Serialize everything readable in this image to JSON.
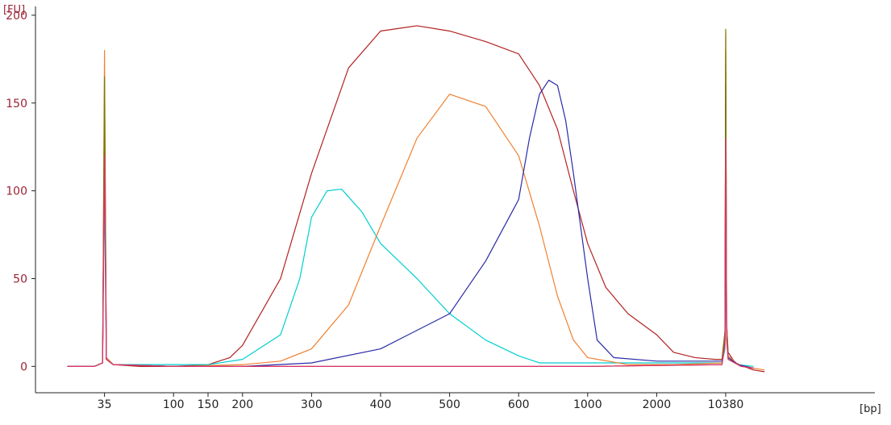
{
  "chart_data": {
    "type": "line",
    "title": "",
    "xlabel": "",
    "ylabel": "",
    "y_unit": "[FU]",
    "x_unit": "[bp]",
    "x_scale": "nonlinear",
    "ylim": [
      -15,
      205
    ],
    "y_ticks": [
      0,
      50,
      100,
      150,
      200
    ],
    "y_tick_labels": [
      "0",
      "50",
      "100",
      "150",
      "200"
    ],
    "x_ticks": [
      35,
      100,
      150,
      200,
      300,
      400,
      500,
      600,
      1000,
      2000,
      10380
    ],
    "x_tick_labels": [
      "35",
      "100",
      "150",
      "200",
      "300",
      "400",
      "500",
      "600",
      "1000",
      "2000",
      "10380"
    ],
    "x_tick_positions": [
      0.1,
      0.2,
      0.25,
      0.3,
      0.4,
      0.5,
      0.6,
      0.7,
      0.8,
      0.9,
      1.0
    ],
    "grid": false,
    "legend": "none",
    "series": [
      {
        "color": "#b22222",
        "points": [
          [
            20,
            0
          ],
          [
            30,
            0
          ],
          [
            34,
            2
          ],
          [
            35,
            150
          ],
          [
            36,
            5
          ],
          [
            40,
            1
          ],
          [
            60,
            0
          ],
          [
            80,
            0
          ],
          [
            100,
            0
          ],
          [
            150,
            1
          ],
          [
            180,
            5
          ],
          [
            200,
            12
          ],
          [
            250,
            50
          ],
          [
            300,
            110
          ],
          [
            350,
            170
          ],
          [
            400,
            191
          ],
          [
            450,
            194
          ],
          [
            500,
            191
          ],
          [
            550,
            185
          ],
          [
            600,
            178
          ],
          [
            700,
            160
          ],
          [
            800,
            135
          ],
          [
            900,
            100
          ],
          [
            1000,
            70
          ],
          [
            1200,
            45
          ],
          [
            1500,
            30
          ],
          [
            2000,
            18
          ],
          [
            3000,
            8
          ],
          [
            5000,
            5
          ],
          [
            8000,
            4
          ],
          [
            9500,
            4
          ],
          [
            10200,
            20
          ],
          [
            10380,
            180
          ],
          [
            10600,
            25
          ],
          [
            11000,
            8
          ],
          [
            13000,
            2
          ],
          [
            16000,
            0
          ],
          [
            20000,
            -2
          ],
          [
            26000,
            -3
          ]
        ]
      },
      {
        "color": "#00ced1",
        "points": [
          [
            20,
            0
          ],
          [
            30,
            0
          ],
          [
            34,
            2
          ],
          [
            35,
            100
          ],
          [
            36,
            4
          ],
          [
            40,
            1
          ],
          [
            80,
            1
          ],
          [
            150,
            1
          ],
          [
            200,
            4
          ],
          [
            250,
            18
          ],
          [
            280,
            50
          ],
          [
            300,
            85
          ],
          [
            320,
            100
          ],
          [
            340,
            101
          ],
          [
            370,
            88
          ],
          [
            400,
            70
          ],
          [
            450,
            50
          ],
          [
            500,
            30
          ],
          [
            550,
            15
          ],
          [
            600,
            6
          ],
          [
            700,
            2
          ],
          [
            800,
            2
          ],
          [
            1000,
            2
          ],
          [
            1500,
            2
          ],
          [
            3000,
            2
          ],
          [
            6000,
            2
          ],
          [
            9500,
            2
          ],
          [
            10200,
            10
          ],
          [
            10380,
            145
          ],
          [
            10600,
            20
          ],
          [
            11000,
            5
          ],
          [
            14000,
            1
          ],
          [
            20000,
            0
          ]
        ]
      },
      {
        "color": "#f08030",
        "points": [
          [
            20,
            0
          ],
          [
            30,
            0
          ],
          [
            34,
            2
          ],
          [
            35,
            180
          ],
          [
            36,
            5
          ],
          [
            40,
            1
          ],
          [
            100,
            0
          ],
          [
            200,
            1
          ],
          [
            250,
            3
          ],
          [
            300,
            10
          ],
          [
            350,
            35
          ],
          [
            400,
            80
          ],
          [
            450,
            130
          ],
          [
            500,
            155
          ],
          [
            550,
            148
          ],
          [
            600,
            120
          ],
          [
            700,
            80
          ],
          [
            800,
            40
          ],
          [
            900,
            15
          ],
          [
            1000,
            5
          ],
          [
            1500,
            1
          ],
          [
            3000,
            1
          ],
          [
            9500,
            2
          ],
          [
            10200,
            15
          ],
          [
            10380,
            190
          ],
          [
            10600,
            25
          ],
          [
            11000,
            6
          ],
          [
            14000,
            1
          ],
          [
            20000,
            -1
          ],
          [
            26000,
            -2
          ]
        ]
      },
      {
        "color": "#2a2aa8",
        "points": [
          [
            20,
            0
          ],
          [
            30,
            0
          ],
          [
            34,
            2
          ],
          [
            35,
            140
          ],
          [
            36,
            4
          ],
          [
            40,
            1
          ],
          [
            100,
            0
          ],
          [
            200,
            0
          ],
          [
            300,
            2
          ],
          [
            400,
            10
          ],
          [
            500,
            30
          ],
          [
            550,
            60
          ],
          [
            600,
            95
          ],
          [
            650,
            130
          ],
          [
            700,
            155
          ],
          [
            750,
            163
          ],
          [
            800,
            160
          ],
          [
            850,
            140
          ],
          [
            900,
            110
          ],
          [
            1000,
            50
          ],
          [
            1100,
            15
          ],
          [
            1300,
            5
          ],
          [
            2000,
            3
          ],
          [
            5000,
            3
          ],
          [
            9500,
            3
          ],
          [
            10200,
            15
          ],
          [
            10380,
            160
          ],
          [
            10600,
            20
          ],
          [
            11000,
            5
          ],
          [
            14000,
            1
          ],
          [
            20000,
            -1
          ]
        ]
      },
      {
        "color": "#7a7a00",
        "points": [
          [
            20,
            0
          ],
          [
            30,
            0
          ],
          [
            34,
            2
          ],
          [
            35,
            165
          ],
          [
            36,
            4
          ],
          [
            40,
            1
          ],
          [
            100,
            0
          ],
          [
            1000,
            0
          ],
          [
            9500,
            1
          ],
          [
            10200,
            20
          ],
          [
            10380,
            192
          ],
          [
            10600,
            20
          ],
          [
            11000,
            4
          ],
          [
            15000,
            0
          ],
          [
            20000,
            -1
          ]
        ]
      },
      {
        "color": "#e03070",
        "points": [
          [
            20,
            0
          ],
          [
            30,
            0
          ],
          [
            34,
            2
          ],
          [
            35,
            120
          ],
          [
            36,
            4
          ],
          [
            40,
            1
          ],
          [
            100,
            0
          ],
          [
            1000,
            0
          ],
          [
            9500,
            1
          ],
          [
            10200,
            12
          ],
          [
            10380,
            130
          ],
          [
            10600,
            15
          ],
          [
            11000,
            4
          ],
          [
            15000,
            0
          ],
          [
            20000,
            -1
          ]
        ]
      }
    ]
  }
}
